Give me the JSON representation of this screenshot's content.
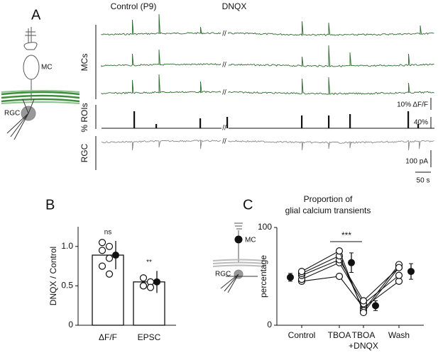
{
  "panel_labels": [
    "A",
    "B",
    "C"
  ],
  "panel_a": {
    "conditions": [
      "Control (P9)",
      "DNQX"
    ],
    "schematic": {
      "cell_top": "MC",
      "cell_bottom": "RGC"
    },
    "rows": [
      "MCs",
      "% ROIs",
      "RGC"
    ],
    "scale_bars": [
      "10% ΔF/F",
      "40%",
      "100 pA",
      "50 s"
    ]
  },
  "panel_c_schematic": {
    "cell_top": "MC",
    "cell_bottom": "RGC"
  },
  "chart_data": [
    {
      "type": "bar",
      "ylabel": "DNQX / Control",
      "categories": [
        "ΔF/F",
        "EPSC"
      ],
      "values": [
        0.89,
        0.55
      ],
      "errors": [
        0.18,
        0.14
      ],
      "points": [
        [
          1.05,
          1.0,
          0.95,
          0.85,
          0.75,
          0.65
        ],
        [
          0.6,
          0.55,
          0.5,
          0.48,
          0.5
        ]
      ],
      "annotations": [
        "ns",
        "**"
      ],
      "ylim": [
        0,
        1.25
      ],
      "yticks": [
        0,
        {
          "value": 0.5,
          "label": "0.5"
        },
        {
          "value": 1.0,
          "label": "1.0"
        }
      ],
      "color": "#ffffff"
    },
    {
      "type": "line",
      "title": [
        "Proportion of",
        "glial calcium transients"
      ],
      "ylabel": "percentage",
      "categories": [
        [
          "Control"
        ],
        [
          "TBOA"
        ],
        [
          "TBOA",
          "+DNQX"
        ],
        [
          "Wash"
        ]
      ],
      "series": [
        {
          "values": [
            45,
            50,
            18,
            45
          ]
        },
        {
          "values": [
            47,
            64,
            22,
            51
          ]
        },
        {
          "values": [
            51,
            67,
            25,
            59
          ]
        },
        {
          "values": [
            53,
            71,
            15,
            62
          ]
        },
        {
          "values": [
            55,
            76,
            13,
            59
          ]
        }
      ],
      "means": [
        49,
        64,
        20,
        55
      ],
      "errors": [
        4,
        10,
        5,
        8
      ],
      "annotation": "***",
      "ylim": [
        0,
        100
      ],
      "yticks": [
        0,
        100
      ]
    }
  ]
}
